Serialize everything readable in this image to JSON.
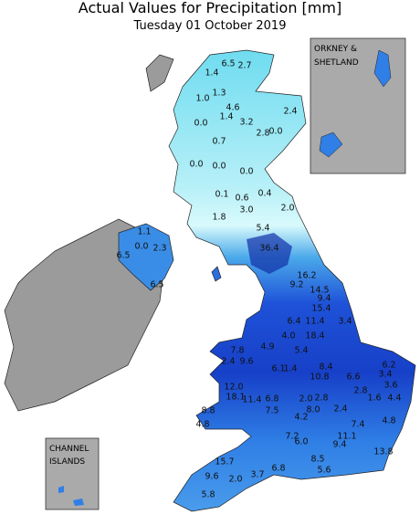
{
  "header": {
    "title": "Actual Values for Precipitation [mm]",
    "subtitle": "Tuesday 01 October 2019"
  },
  "insets": [
    {
      "lines": [
        "ORKNEY &",
        "SHETLAND"
      ]
    },
    {
      "lines": [
        "CHANNEL",
        "ISLANDS"
      ]
    }
  ],
  "station_values": [
    "6.5",
    "2.7",
    "1.4",
    "1.3",
    "1.0",
    "4.6",
    "1.4",
    "3.2",
    "2.4",
    "0.0",
    "2.8",
    "0.0",
    "0.7",
    "0.0",
    "0.0",
    "0.0",
    "0.1",
    "0.6",
    "0.4",
    "3.0",
    "1.8",
    "2.0",
    "5.4",
    "36.4",
    "1.1",
    "0.0",
    "2.3",
    "6.5",
    "6.5",
    "16.2",
    "9.2",
    "14.5",
    "9.4",
    "15.4",
    "3.4",
    "6.4",
    "11.4",
    "4.0",
    "18.4",
    "7.8",
    "4.9",
    "5.4",
    "2.4",
    "9.6",
    "6.1",
    "1.4",
    "8.4",
    "6.6",
    "6.2",
    "3.4",
    "3.6",
    "10.8",
    "2.8",
    "2.8",
    "1.6",
    "4.4",
    "12.0",
    "18.1",
    "11.4",
    "6.8",
    "2.0",
    "8.0",
    "2.4",
    "7.5",
    "4.2",
    "4.8",
    "8.8",
    "4.8",
    "7.4",
    "7.2",
    "6.0",
    "11.1",
    "9.4",
    "13.8",
    "15.7",
    "9.6",
    "2.0",
    "3.7",
    "6.8",
    "5.6",
    "5.8",
    "8.5"
  ]
}
